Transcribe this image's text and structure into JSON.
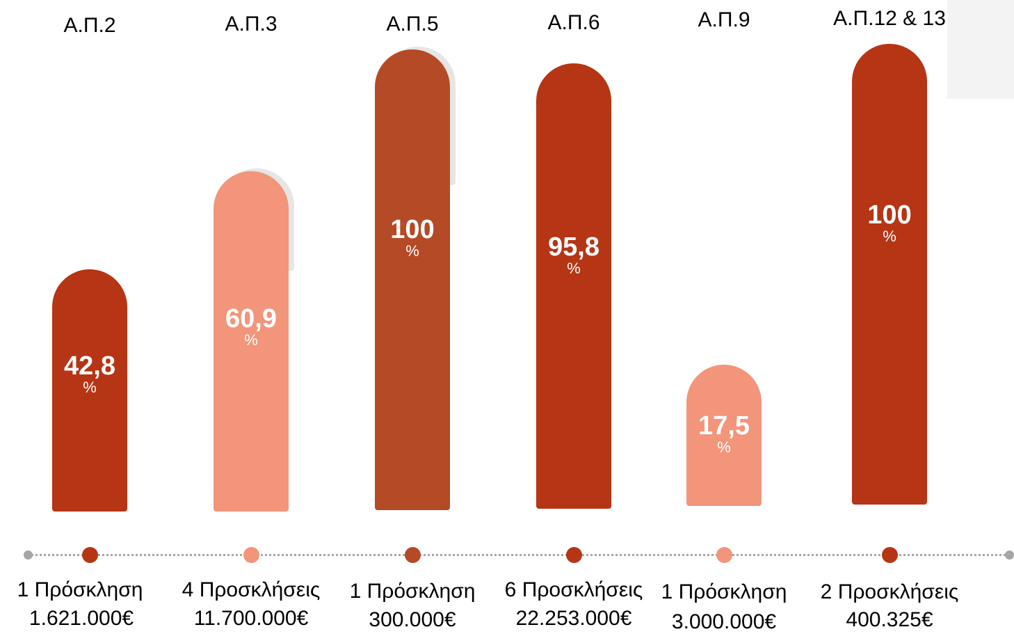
{
  "chart_data": {
    "type": "bar",
    "categories": [
      "Α.Π.2",
      "Α.Π.3",
      "Α.Π.5",
      "Α.Π.6",
      "Α.Π.9",
      "Α.Π.12 & 13"
    ],
    "values": [
      42.8,
      60.9,
      100,
      95.8,
      17.5,
      100
    ],
    "value_labels": [
      "42,8",
      "60,9",
      "100",
      "95,8",
      "17,5",
      "100"
    ],
    "unit": "%",
    "footer_line1": [
      "1 Πρόσκληση",
      "4 Προσκλήσεις",
      "1 Πρόσκληση",
      "6 Προσκλήσεις",
      "1 Πρόσκληση",
      "2 Προσκλήσεις"
    ],
    "footer_line2": [
      "1.621.000€",
      "11.700.000€",
      "300.000€",
      "22.253.000€",
      "3.000.000€",
      "400.325€"
    ],
    "bar_colors": [
      "#b53514",
      "#f2957a",
      "#b54a26",
      "#b53514",
      "#f2957a",
      "#b53514"
    ],
    "ylim": [
      0,
      100
    ],
    "grid": false
  },
  "colors": {
    "dark_red": "#b53514",
    "rust": "#b54a26",
    "salmon": "#f2957a",
    "timeline": "#a6a6a6"
  }
}
